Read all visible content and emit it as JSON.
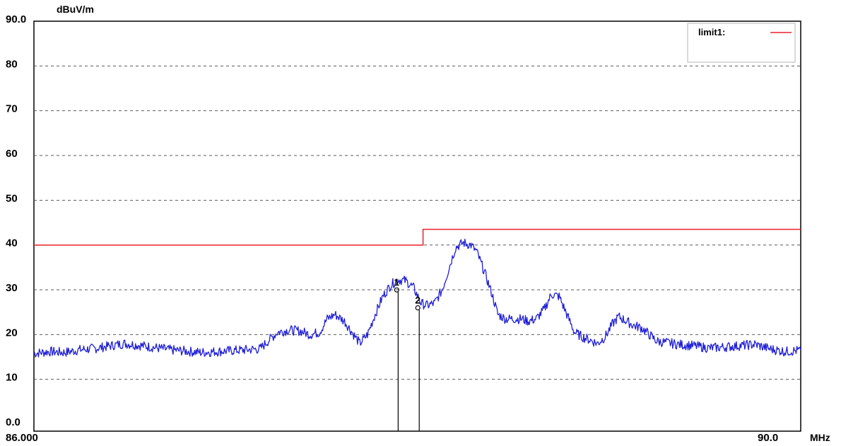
{
  "chart_data": {
    "type": "line",
    "title": "",
    "ylabel": "dBuV/m",
    "xlabel": "MHz",
    "ylim": [
      0,
      90
    ],
    "xlim": [
      86.0,
      90.0
    ],
    "y_ticks": [
      {
        "value": 0,
        "label": "0.0"
      },
      {
        "value": 10,
        "label": "10"
      },
      {
        "value": 20,
        "label": "20"
      },
      {
        "value": 30,
        "label": "30"
      },
      {
        "value": 40,
        "label": "40"
      },
      {
        "value": 50,
        "label": "50"
      },
      {
        "value": 60,
        "label": "60"
      },
      {
        "value": 70,
        "label": "70"
      },
      {
        "value": 80,
        "label": "80"
      },
      {
        "value": 90,
        "label": "90.0"
      }
    ],
    "x_ticks": [
      {
        "value": 86.0,
        "label": "86.000"
      },
      {
        "value": 90.0,
        "label": "90.0"
      }
    ],
    "grid": true,
    "legend": {
      "position": "top-right",
      "entries": [
        {
          "label": "limit1:",
          "color": "#e8202a"
        }
      ]
    },
    "colors": {
      "trace": "#1f1fd6",
      "limit": "#e8202a",
      "grid": "#5a5a5a",
      "marker": "#000000"
    },
    "limit_line": {
      "name": "limit1",
      "points": [
        [
          86.0,
          40.0
        ],
        [
          88.03,
          40.0
        ],
        [
          88.03,
          43.5
        ],
        [
          90.0,
          43.5
        ]
      ]
    },
    "series": [
      {
        "points": [
          [
            86.0,
            15.8
          ],
          [
            86.08,
            16.2
          ],
          [
            86.16,
            16.0
          ],
          [
            86.24,
            16.6
          ],
          [
            86.32,
            16.9
          ],
          [
            86.4,
            17.5
          ],
          [
            86.47,
            18.0
          ],
          [
            86.55,
            17.6
          ],
          [
            86.63,
            17.1
          ],
          [
            86.71,
            16.6
          ],
          [
            86.79,
            16.3
          ],
          [
            86.87,
            16.0
          ],
          [
            86.95,
            16.2
          ],
          [
            87.03,
            16.4
          ],
          [
            87.11,
            16.6
          ],
          [
            87.18,
            16.8
          ],
          [
            87.22,
            18.5
          ],
          [
            87.27,
            20.5
          ],
          [
            87.33,
            21.0
          ],
          [
            87.39,
            20.8
          ],
          [
            87.44,
            20.0
          ],
          [
            87.49,
            20.5
          ],
          [
            87.53,
            23.5
          ],
          [
            87.57,
            24.5
          ],
          [
            87.62,
            23.0
          ],
          [
            87.66,
            20.5
          ],
          [
            87.7,
            18.0
          ],
          [
            87.74,
            20.0
          ],
          [
            87.78,
            24.5
          ],
          [
            87.82,
            28.5
          ],
          [
            87.86,
            31.0
          ],
          [
            87.9,
            32.3
          ],
          [
            87.94,
            32.0
          ],
          [
            87.98,
            30.5
          ],
          [
            88.02,
            27.0
          ],
          [
            88.05,
            26.5
          ],
          [
            88.09,
            27.0
          ],
          [
            88.13,
            30.0
          ],
          [
            88.17,
            35.5
          ],
          [
            88.2,
            39.5
          ],
          [
            88.24,
            40.5
          ],
          [
            88.28,
            40.0
          ],
          [
            88.31,
            38.5
          ],
          [
            88.35,
            34.0
          ],
          [
            88.39,
            29.0
          ],
          [
            88.42,
            24.5
          ],
          [
            88.46,
            23.5
          ],
          [
            88.5,
            23.5
          ],
          [
            88.54,
            23.5
          ],
          [
            88.58,
            23.0
          ],
          [
            88.62,
            23.5
          ],
          [
            88.66,
            25.5
          ],
          [
            88.7,
            29.0
          ],
          [
            88.74,
            28.5
          ],
          [
            88.78,
            24.5
          ],
          [
            88.82,
            20.5
          ],
          [
            88.86,
            19.5
          ],
          [
            88.9,
            18.8
          ],
          [
            88.94,
            18.0
          ],
          [
            88.98,
            19.5
          ],
          [
            89.02,
            22.5
          ],
          [
            89.05,
            24.0
          ],
          [
            89.09,
            23.0
          ],
          [
            89.13,
            22.0
          ],
          [
            89.17,
            21.5
          ],
          [
            89.21,
            20.0
          ],
          [
            89.25,
            18.5
          ],
          [
            89.3,
            18.2
          ],
          [
            89.36,
            17.8
          ],
          [
            89.44,
            17.5
          ],
          [
            89.52,
            17.0
          ],
          [
            89.6,
            17.2
          ],
          [
            89.68,
            17.5
          ],
          [
            89.76,
            17.8
          ],
          [
            89.84,
            16.8
          ],
          [
            89.92,
            16.2
          ],
          [
            90.0,
            16.5
          ]
        ]
      }
    ],
    "markers": [
      {
        "label": "1",
        "x": 87.9,
        "y": 29.5
      },
      {
        "label": "2",
        "x": 88.01,
        "y": 25.5
      }
    ]
  }
}
